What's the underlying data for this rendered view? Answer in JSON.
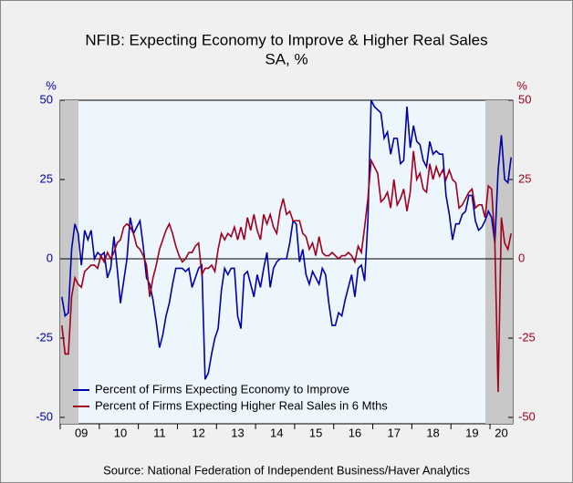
{
  "chart_data": {
    "type": "line",
    "title": "NFIB: Expecting Economy to Improve & Higher Real Sales",
    "subtitle": "SA, %",
    "y_label": "%",
    "y2_label": "%",
    "source": "Source:  National Federation of Independent Business/Haver Analytics",
    "categories": [
      null,
      null,
      null,
      null,
      null,
      null,
      "09",
      null,
      null,
      null,
      null,
      null,
      null,
      null,
      null,
      null,
      null,
      null,
      "10",
      null,
      null,
      null,
      null,
      null,
      null,
      null,
      null,
      null,
      null,
      null,
      "11",
      null,
      null,
      null,
      null,
      null,
      null,
      null,
      null,
      null,
      null,
      null,
      "12",
      null,
      null,
      null,
      null,
      null,
      null,
      null,
      null,
      null,
      null,
      null,
      "13",
      null,
      null,
      null,
      null,
      null,
      null,
      null,
      null,
      null,
      null,
      null,
      "14",
      null,
      null,
      null,
      null,
      null,
      null,
      null,
      null,
      null,
      null,
      null,
      "15",
      null,
      null,
      null,
      null,
      null,
      null,
      null,
      null,
      null,
      null,
      null,
      "16",
      null,
      null,
      null,
      null,
      null,
      null,
      null,
      null,
      null,
      null,
      null,
      "17",
      null,
      null,
      null,
      null,
      null,
      null,
      null,
      null,
      null,
      null,
      null,
      "18",
      null,
      null,
      null,
      null,
      null,
      null,
      null,
      null,
      null,
      null,
      null,
      "19",
      null,
      null,
      null,
      null,
      null,
      null,
      null,
      null,
      "20",
      null,
      null,
      null
    ],
    "series": [
      {
        "name": "Percent of Firms Expecting Economy to Improve",
        "color": "#0000aa",
        "values": [
          -12,
          -18,
          -17,
          3,
          11,
          8,
          -2,
          9,
          6,
          9,
          0,
          2,
          1,
          2,
          -6,
          -3,
          7,
          -3,
          -14,
          -7,
          0,
          13,
          8,
          10,
          12,
          4,
          -6,
          -8,
          -13,
          -20,
          -28,
          -24,
          -18,
          -14,
          -8,
          -3,
          -3,
          -3,
          -4,
          -3,
          -9,
          -6,
          -3,
          -2,
          -38,
          -36,
          -30,
          -25,
          -22,
          -10,
          -3,
          -5,
          -3,
          -3,
          -18,
          -22,
          -5,
          -4,
          -8,
          -12,
          -5,
          -9,
          -3,
          2,
          -9,
          -3,
          -1,
          0,
          0,
          0,
          5,
          12,
          11,
          -1,
          3,
          -5,
          -8,
          -4,
          -6,
          -8,
          -3,
          -5,
          -14,
          -21,
          -21,
          -17,
          -18,
          -13,
          -9,
          -5,
          -12,
          -3,
          -2,
          -7,
          12,
          50,
          48,
          47,
          46,
          38,
          40,
          33,
          38,
          38,
          30,
          31,
          48,
          35,
          42,
          37,
          36,
          31,
          29,
          37,
          33,
          34,
          33,
          33,
          20,
          14,
          6,
          11,
          11,
          14,
          15,
          20,
          20,
          12,
          9,
          10,
          12,
          15,
          13,
          5,
          28,
          39,
          25,
          24,
          32
        ]
      },
      {
        "name": "Percent of Firms Expecting Higher Real Sales in 6 Mths",
        "color": "#a0001e",
        "axis": "y2",
        "values": [
          -21,
          -30,
          -30,
          -12,
          -6,
          -8,
          -9,
          -4,
          -3,
          -2,
          -2,
          -3,
          1,
          -1,
          2,
          0,
          2,
          5,
          6,
          10,
          11,
          10,
          8,
          4,
          3,
          1,
          -2,
          -12,
          -6,
          -2,
          3,
          6,
          9,
          11,
          8,
          4,
          1,
          -1,
          0,
          2,
          2,
          4,
          5,
          -5,
          -3,
          -3,
          -2,
          -4,
          3,
          8,
          6,
          8,
          7,
          10,
          6,
          10,
          6,
          13,
          9,
          14,
          9,
          6,
          14,
          11,
          14,
          10,
          8,
          15,
          19,
          14,
          15,
          12,
          12,
          12,
          8,
          7,
          3,
          5,
          1,
          7,
          2,
          1,
          1,
          2,
          1,
          0,
          1,
          1,
          2,
          1,
          -1,
          4,
          2,
          10,
          19,
          31,
          29,
          27,
          18,
          19,
          21,
          16,
          25,
          17,
          19,
          22,
          15,
          21,
          34,
          25,
          27,
          22,
          21,
          30,
          25,
          29,
          26,
          28,
          25,
          28,
          25,
          24,
          16,
          17,
          19,
          21,
          22,
          16,
          17,
          17,
          13,
          23,
          22,
          5,
          -42,
          13,
          5,
          3,
          8
        ]
      }
    ],
    "ylim": [
      -50,
      50
    ],
    "yticks": [
      50,
      25,
      0,
      -25,
      -50
    ],
    "ytick_color": "#0000aa",
    "y2lim": [
      -50,
      50
    ],
    "y2ticks": [
      50,
      25,
      0,
      -25,
      -50
    ],
    "y2tick_color": "#a0001e",
    "legend": "lower left",
    "grid": false
  }
}
